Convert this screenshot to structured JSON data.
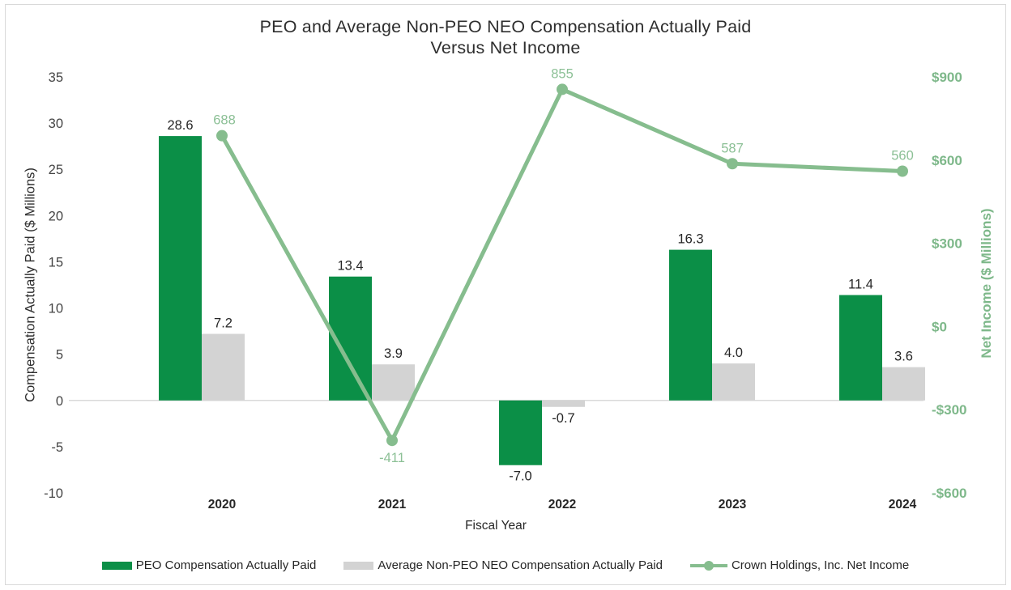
{
  "title": {
    "line1": "PEO and Average Non-PEO NEO Compensation Actually Paid",
    "line2": "Versus Net Income"
  },
  "chart_data": {
    "type": "combo-bar-line",
    "categories": [
      "2020",
      "2021",
      "2022",
      "2023",
      "2024"
    ],
    "series": [
      {
        "name": "PEO Compensation Actually Paid",
        "type": "bar",
        "axis": "left",
        "color": "#0B8F47",
        "values": [
          28.6,
          13.4,
          -7.0,
          16.3,
          11.4
        ],
        "labels": [
          "28.6",
          "13.4",
          "-7.0",
          "16.3",
          "11.4"
        ]
      },
      {
        "name": "Average Non-PEO NEO Compensation Actually Paid",
        "type": "bar",
        "axis": "left",
        "color": "#D3D3D3",
        "values": [
          7.2,
          3.9,
          -0.7,
          4.0,
          3.6
        ],
        "labels": [
          "7.2",
          "3.9",
          "-0.7",
          "4.0",
          "3.6"
        ]
      },
      {
        "name": "Crown Holdings, Inc. Net Income",
        "type": "line",
        "axis": "right",
        "color": "#86BD8E",
        "label_color": "#8CC096",
        "values": [
          688,
          -411,
          855,
          587,
          560
        ],
        "labels": [
          "688",
          "-411",
          "855",
          "587",
          "560"
        ]
      }
    ],
    "xlabel": "Fiscal Year",
    "left_axis": {
      "title": "Compensation Actually Paid ($ Millions)",
      "min": -10,
      "max": 35,
      "step": 5,
      "ticks": [
        {
          "v": 35,
          "label": "35"
        },
        {
          "v": 30,
          "label": "30"
        },
        {
          "v": 25,
          "label": "25"
        },
        {
          "v": 20,
          "label": "20"
        },
        {
          "v": 15,
          "label": "15"
        },
        {
          "v": 10,
          "label": "10"
        },
        {
          "v": 5,
          "label": "5"
        },
        {
          "v": 0,
          "label": "0"
        },
        {
          "v": -5,
          "label": "-5"
        },
        {
          "v": -10,
          "label": "-10"
        }
      ]
    },
    "right_axis": {
      "title": "Net Income ($ Millions)",
      "min": -600,
      "max": 900,
      "step": 300,
      "ticks": [
        {
          "v": 900,
          "label": "$900"
        },
        {
          "v": 600,
          "label": "$600"
        },
        {
          "v": 300,
          "label": "$300"
        },
        {
          "v": 0,
          "label": "$0"
        },
        {
          "v": -300,
          "label": "-$300"
        },
        {
          "v": -600,
          "label": "-$600"
        }
      ]
    },
    "legend_position": "bottom",
    "grid": "zero-line-only"
  },
  "colors": {
    "bar_green": "#0B8F47",
    "bar_gray": "#D3D3D3",
    "line_green": "#86BD8E",
    "line_label_green": "#8CC096",
    "axis_green": "#7EB88A",
    "title_text": "#2E2E2E",
    "tick_text": "#454545",
    "label_text": "#262626",
    "zero_line": "#D9D9D9",
    "frame_border": "#D9D9D9"
  }
}
